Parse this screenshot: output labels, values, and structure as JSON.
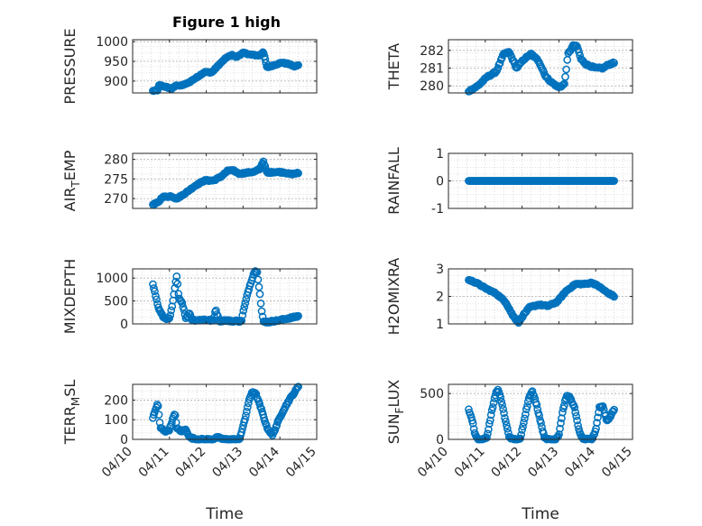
{
  "figure_title": "Figure 1 high",
  "colors": {
    "marker": "#0072BD",
    "axis": "#262626",
    "grid": "#c8c8c8"
  },
  "chart_data": [
    {
      "id": "pressure",
      "type": "scatter",
      "ylabel": "PRESSURE",
      "ylabel_sub": "",
      "ylim": [
        870,
        1005
      ],
      "yticks": [
        900,
        950,
        1000
      ],
      "ytick_labels": [
        "900",
        "950",
        "1000"
      ],
      "xlim": [
        0,
        5
      ],
      "xticks": [],
      "xtick_labels": [],
      "xlabel": "",
      "anchors": [
        [
          0.55,
          875
        ],
        [
          0.68,
          877
        ],
        [
          0.72,
          890
        ],
        [
          0.95,
          884
        ],
        [
          1.05,
          880
        ],
        [
          1.2,
          890
        ],
        [
          1.3,
          888
        ],
        [
          1.5,
          895
        ],
        [
          1.75,
          910
        ],
        [
          1.95,
          923
        ],
        [
          2.15,
          922
        ],
        [
          2.35,
          942
        ],
        [
          2.55,
          960
        ],
        [
          2.7,
          966
        ],
        [
          2.82,
          961
        ],
        [
          3.0,
          972
        ],
        [
          3.2,
          967
        ],
        [
          3.45,
          965
        ],
        [
          3.55,
          975
        ],
        [
          3.65,
          934
        ],
        [
          3.82,
          940
        ],
        [
          4.05,
          947
        ],
        [
          4.25,
          943
        ],
        [
          4.4,
          937
        ],
        [
          4.5,
          940
        ]
      ],
      "n": 190,
      "noise": 0.01
    },
    {
      "id": "theta",
      "type": "scatter",
      "ylabel": "THETA",
      "ylabel_sub": "",
      "ylim": [
        279.6,
        282.6
      ],
      "yticks": [
        280,
        281,
        282
      ],
      "ytick_labels": [
        "280",
        "281",
        "282"
      ],
      "xlim": [
        0,
        5
      ],
      "xticks": [],
      "xtick_labels": [],
      "xlabel": "",
      "anchors": [
        [
          0.55,
          279.7
        ],
        [
          0.8,
          280.0
        ],
        [
          1.05,
          280.5
        ],
        [
          1.3,
          280.8
        ],
        [
          1.5,
          281.8
        ],
        [
          1.65,
          281.9
        ],
        [
          1.85,
          281.0
        ],
        [
          2.05,
          281.5
        ],
        [
          2.25,
          281.8
        ],
        [
          2.45,
          281.4
        ],
        [
          2.65,
          280.5
        ],
        [
          2.8,
          280.2
        ],
        [
          3.0,
          279.9
        ],
        [
          3.15,
          280.1
        ],
        [
          3.25,
          281.8
        ],
        [
          3.4,
          282.3
        ],
        [
          3.5,
          282.2
        ],
        [
          3.6,
          281.5
        ],
        [
          3.75,
          281.2
        ],
        [
          4.0,
          281.0
        ],
        [
          4.2,
          281.0
        ],
        [
          4.35,
          281.2
        ],
        [
          4.5,
          281.3
        ]
      ],
      "n": 150,
      "noise": 0.015
    },
    {
      "id": "air_temp",
      "type": "scatter",
      "ylabel": "AIR",
      "ylabel_sub": "T",
      "ylabel_tail": "EMP",
      "ylim": [
        267.5,
        281.5
      ],
      "yticks": [
        270,
        275,
        280
      ],
      "ytick_labels": [
        "270",
        "275",
        "280"
      ],
      "xlim": [
        0,
        5
      ],
      "xticks": [],
      "xtick_labels": [],
      "xlabel": "",
      "anchors": [
        [
          0.55,
          268.5
        ],
        [
          0.7,
          269.0
        ],
        [
          0.8,
          270.4
        ],
        [
          1.05,
          270.6
        ],
        [
          1.2,
          270.0
        ],
        [
          1.45,
          271.5
        ],
        [
          1.7,
          273.3
        ],
        [
          1.95,
          274.6
        ],
        [
          2.2,
          274.6
        ],
        [
          2.4,
          275.6
        ],
        [
          2.6,
          277.2
        ],
        [
          2.75,
          277.1
        ],
        [
          2.9,
          276.3
        ],
        [
          3.1,
          276.6
        ],
        [
          3.3,
          276.8
        ],
        [
          3.45,
          277.5
        ],
        [
          3.55,
          279.5
        ],
        [
          3.65,
          276.5
        ],
        [
          3.85,
          276.8
        ],
        [
          4.1,
          276.7
        ],
        [
          4.3,
          276.2
        ],
        [
          4.5,
          276.5
        ]
      ],
      "n": 180,
      "noise": 0.012
    },
    {
      "id": "rainfall",
      "type": "scatter",
      "ylabel": "RAINFALL",
      "ylabel_sub": "",
      "ylim": [
        -1,
        1
      ],
      "yticks": [
        -1,
        0,
        1
      ],
      "ytick_labels": [
        "-1",
        "0",
        "1"
      ],
      "xlim": [
        0,
        5
      ],
      "xticks": [],
      "xtick_labels": [],
      "xlabel": "",
      "anchors": [
        [
          0.55,
          0
        ],
        [
          4.5,
          0
        ]
      ],
      "n": 150,
      "noise": 0
    },
    {
      "id": "mixdepth",
      "type": "scatter",
      "ylabel": "MIXDEPTH",
      "ylabel_sub": "",
      "ylim": [
        0,
        1200
      ],
      "yticks": [
        0,
        500,
        1000
      ],
      "ytick_labels": [
        "0",
        "500",
        "1000"
      ],
      "xlim": [
        0,
        5
      ],
      "xticks": [],
      "xtick_labels": [],
      "xlabel": "",
      "anchors": [
        [
          0.55,
          880
        ],
        [
          0.6,
          700
        ],
        [
          0.7,
          350
        ],
        [
          0.78,
          220
        ],
        [
          0.85,
          130
        ],
        [
          1.0,
          110
        ],
        [
          1.08,
          400
        ],
        [
          1.15,
          800
        ],
        [
          1.2,
          1050
        ],
        [
          1.25,
          600
        ],
        [
          1.35,
          450
        ],
        [
          1.45,
          120
        ],
        [
          1.55,
          250
        ],
        [
          1.6,
          90
        ],
        [
          1.75,
          80
        ],
        [
          1.95,
          95
        ],
        [
          2.1,
          80
        ],
        [
          2.2,
          70
        ],
        [
          2.25,
          330
        ],
        [
          2.35,
          60
        ],
        [
          2.5,
          80
        ],
        [
          2.7,
          60
        ],
        [
          2.85,
          70
        ],
        [
          2.95,
          40
        ],
        [
          3.0,
          250
        ],
        [
          3.15,
          750
        ],
        [
          3.3,
          1130
        ],
        [
          3.38,
          1160
        ],
        [
          3.45,
          700
        ],
        [
          3.5,
          300
        ],
        [
          3.55,
          50
        ],
        [
          3.7,
          40
        ],
        [
          3.8,
          60
        ],
        [
          4.0,
          80
        ],
        [
          4.2,
          120
        ],
        [
          4.35,
          140
        ],
        [
          4.5,
          170
        ]
      ],
      "n": 160,
      "noise": 0.015
    },
    {
      "id": "h2omixra",
      "type": "scatter",
      "ylabel": "H2OMIXRA",
      "ylabel_sub": "",
      "ylim": [
        1,
        3
      ],
      "yticks": [
        1,
        2,
        3
      ],
      "ytick_labels": [
        "1",
        "2",
        "3"
      ],
      "xlim": [
        0,
        5
      ],
      "xticks": [],
      "xtick_labels": [],
      "xlabel": "",
      "anchors": [
        [
          0.55,
          2.6
        ],
        [
          0.75,
          2.5
        ],
        [
          1.0,
          2.3
        ],
        [
          1.3,
          2.1
        ],
        [
          1.55,
          1.8
        ],
        [
          1.75,
          1.3
        ],
        [
          1.9,
          1.05
        ],
        [
          2.05,
          1.35
        ],
        [
          2.2,
          1.6
        ],
        [
          2.45,
          1.7
        ],
        [
          2.7,
          1.65
        ],
        [
          2.95,
          1.8
        ],
        [
          3.2,
          2.2
        ],
        [
          3.45,
          2.45
        ],
        [
          3.7,
          2.45
        ],
        [
          3.9,
          2.5
        ],
        [
          4.1,
          2.35
        ],
        [
          4.3,
          2.15
        ],
        [
          4.5,
          2.0
        ]
      ],
      "n": 170,
      "noise": 0.012
    },
    {
      "id": "terr_msl",
      "type": "scatter",
      "ylabel": "TERR",
      "ylabel_sub": "M",
      "ylabel_tail": "SL",
      "ylim": [
        0,
        280
      ],
      "yticks": [
        0,
        100,
        200
      ],
      "ytick_labels": [
        "0",
        "100",
        "200"
      ],
      "xlim": [
        0,
        5
      ],
      "xticks": [
        0,
        1,
        2,
        3,
        4,
        5
      ],
      "xtick_labels": [
        "04/10",
        "04/11",
        "04/12",
        "04/13",
        "04/14",
        "04/15"
      ],
      "xlabel": "Time",
      "anchors": [
        [
          0.55,
          110
        ],
        [
          0.62,
          150
        ],
        [
          0.68,
          185
        ],
        [
          0.75,
          60
        ],
        [
          0.9,
          40
        ],
        [
          1.0,
          50
        ],
        [
          1.1,
          110
        ],
        [
          1.15,
          130
        ],
        [
          1.2,
          60
        ],
        [
          1.3,
          40
        ],
        [
          1.45,
          50
        ],
        [
          1.55,
          10
        ],
        [
          1.75,
          0
        ],
        [
          2.0,
          0
        ],
        [
          2.15,
          0
        ],
        [
          2.3,
          10
        ],
        [
          2.5,
          0
        ],
        [
          2.75,
          0
        ],
        [
          2.9,
          0
        ],
        [
          3.05,
          100
        ],
        [
          3.15,
          190
        ],
        [
          3.25,
          245
        ],
        [
          3.35,
          230
        ],
        [
          3.5,
          150
        ],
        [
          3.65,
          60
        ],
        [
          3.8,
          20
        ],
        [
          3.95,
          90
        ],
        [
          4.1,
          150
        ],
        [
          4.25,
          200
        ],
        [
          4.4,
          240
        ],
        [
          4.5,
          270
        ]
      ],
      "n": 170,
      "noise": 0.015
    },
    {
      "id": "sun_flux",
      "type": "scatter",
      "ylabel": "SUN",
      "ylabel_sub": "F",
      "ylabel_tail": "LUX",
      "ylim": [
        0,
        600
      ],
      "yticks": [
        0,
        500
      ],
      "ytick_labels": [
        "0",
        "500"
      ],
      "xlim": [
        0,
        5
      ],
      "xticks": [
        0,
        1,
        2,
        3,
        4,
        5
      ],
      "xtick_labels": [
        "04/10",
        "04/11",
        "04/12",
        "04/13",
        "04/14",
        "04/15"
      ],
      "xlabel": "Time",
      "anchors": [
        [
          0.55,
          330
        ],
        [
          0.65,
          200
        ],
        [
          0.72,
          60
        ],
        [
          0.8,
          0
        ],
        [
          0.95,
          0
        ],
        [
          1.05,
          30
        ],
        [
          1.15,
          250
        ],
        [
          1.28,
          500
        ],
        [
          1.35,
          540
        ],
        [
          1.45,
          400
        ],
        [
          1.55,
          200
        ],
        [
          1.65,
          30
        ],
        [
          1.75,
          0
        ],
        [
          1.95,
          0
        ],
        [
          2.05,
          200
        ],
        [
          2.2,
          480
        ],
        [
          2.28,
          520
        ],
        [
          2.38,
          400
        ],
        [
          2.5,
          200
        ],
        [
          2.6,
          30
        ],
        [
          2.7,
          0
        ],
        [
          2.9,
          0
        ],
        [
          3.0,
          50
        ],
        [
          3.1,
          300
        ],
        [
          3.2,
          470
        ],
        [
          3.3,
          460
        ],
        [
          3.42,
          350
        ],
        [
          3.52,
          150
        ],
        [
          3.6,
          30
        ],
        [
          3.7,
          0
        ],
        [
          3.9,
          0
        ],
        [
          4.0,
          100
        ],
        [
          4.1,
          350
        ],
        [
          4.2,
          360
        ],
        [
          4.3,
          200
        ],
        [
          4.4,
          250
        ],
        [
          4.5,
          330
        ]
      ],
      "n": 170,
      "noise": 0.015
    }
  ]
}
